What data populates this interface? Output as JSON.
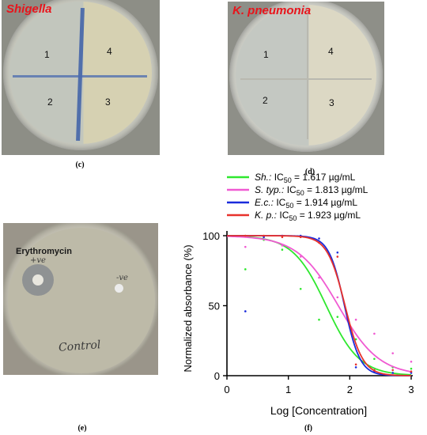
{
  "panels": {
    "c": {
      "title": "Shigella",
      "caption": "(c)",
      "quadrants": [
        "1",
        "4",
        "2",
        "3"
      ]
    },
    "d": {
      "title": "K. pneumonia",
      "caption": "(d)",
      "quadrants": [
        "1",
        "4",
        "2",
        "3"
      ]
    },
    "e": {
      "caption": "(e)",
      "disc_label": "Erythromycin",
      "hand_notes": [
        "+ve",
        "-ve",
        "Control"
      ]
    },
    "f": {
      "caption": "(f)"
    }
  },
  "chart_data": {
    "type": "line",
    "xlabel": "Log [Concentration]",
    "ylabel": "Normalized absorbance (%)",
    "xlim": [
      0,
      3
    ],
    "ylim": [
      0,
      100
    ],
    "xticks": [
      "0",
      "1",
      "2",
      "3"
    ],
    "yticks": [
      "0",
      "50",
      "100"
    ],
    "legend_position": "top",
    "series": [
      {
        "name_italic": "Sh.:",
        "name_rest": "IC",
        "subscript": "50",
        "value_text": " = 1.617 µg/mL",
        "color": "#2ee82e",
        "ic50_log": 1.617,
        "hill": 1.6,
        "points": [
          [
            0.3,
            76
          ],
          [
            0.6,
            97
          ],
          [
            0.9,
            90
          ],
          [
            1.2,
            62
          ],
          [
            1.5,
            40
          ],
          [
            1.8,
            42
          ],
          [
            2.1,
            26
          ],
          [
            2.4,
            12
          ],
          [
            2.7,
            6
          ],
          [
            3.0,
            5
          ]
        ]
      },
      {
        "name_italic": "S. typ.:",
        "name_rest": "IC",
        "subscript": "50",
        "value_text": " = 1.813 µg/mL",
        "color": "#f05ad2",
        "ic50_log": 1.813,
        "hill": 1.3,
        "points": [
          [
            0.3,
            92
          ],
          [
            0.6,
            99
          ],
          [
            0.9,
            93
          ],
          [
            1.2,
            85
          ],
          [
            1.5,
            70
          ],
          [
            1.8,
            56
          ],
          [
            2.1,
            40
          ],
          [
            2.4,
            30
          ],
          [
            2.7,
            16
          ],
          [
            3.0,
            10
          ]
        ]
      },
      {
        "name_italic": "E.c.:",
        "name_rest": "IC",
        "subscript": "50",
        "value_text": " = 1.914 µg/mL",
        "color": "#1a2bdc",
        "ic50_log": 1.914,
        "hill": 3.4,
        "points": [
          [
            0.3,
            46
          ],
          [
            0.6,
            99
          ],
          [
            0.9,
            100
          ],
          [
            1.2,
            100
          ],
          [
            1.5,
            98
          ],
          [
            1.8,
            88
          ],
          [
            2.1,
            6
          ],
          [
            2.4,
            3
          ],
          [
            2.7,
            2
          ],
          [
            3.0,
            2
          ]
        ]
      },
      {
        "name_italic": "K. p.:",
        "name_rest": "IC",
        "subscript": "50",
        "value_text": " = 1.923 µg/mL",
        "color": "#e8322c",
        "ic50_log": 1.923,
        "hill": 3.0,
        "points": [
          [
            0.3,
            100
          ],
          [
            0.6,
            100
          ],
          [
            0.9,
            99
          ],
          [
            1.2,
            99
          ],
          [
            1.5,
            95
          ],
          [
            1.8,
            85
          ],
          [
            2.1,
            8
          ],
          [
            2.4,
            4
          ],
          [
            2.7,
            4
          ],
          [
            3.0,
            3
          ]
        ]
      }
    ]
  }
}
